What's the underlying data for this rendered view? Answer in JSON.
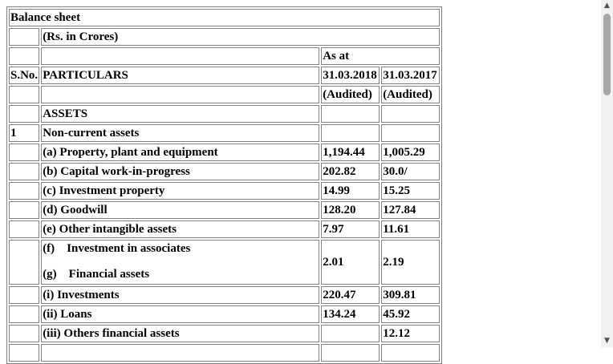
{
  "title": "Balance sheet",
  "unit": "(Rs. in Crores)",
  "as_at": "As at",
  "headers": {
    "sno": "S.No.",
    "particulars": "PARTICULARS",
    "col1": "31.03.2018",
    "col2": "31.03.2017"
  },
  "audited": {
    "col1": "(Audited)",
    "col2": "(Audited)"
  },
  "section": "ASSETS",
  "group": {
    "sno": "1",
    "label": "Non-current assets"
  },
  "rows": [
    {
      "label": "(a) Property, plant and equipment",
      "v2018": "1,194.44",
      "v2017": "1,005.29"
    },
    {
      "label": "(b) Capital work-in-progress",
      "v2018": "202.82",
      "v2017": "30.0/"
    },
    {
      "label": "(c) Investment property",
      "v2018": "14.99",
      "v2017": "15.25"
    },
    {
      "label": "(d) Goodwill",
      "v2018": "128.20",
      "v2017": "127.84"
    },
    {
      "label": "(e) Other intangible assets",
      "v2018": "7.97",
      "v2017": "11.61"
    }
  ],
  "stacked_row": {
    "line1": "(f)    Investment in associates",
    "line2": "(g)    Financial assets",
    "v2018": "2.01",
    "v2017": "2.19"
  },
  "rows_after": [
    {
      "label": "(i) Investments",
      "v2018": "220.47",
      "v2017": "309.81"
    },
    {
      "label": "(ii) Loans",
      "v2018": "134.24",
      "v2017": "45.92"
    },
    {
      "label": "(iii) Others financial assets",
      "v2018": "",
      "v2017": "12.12"
    }
  ]
}
